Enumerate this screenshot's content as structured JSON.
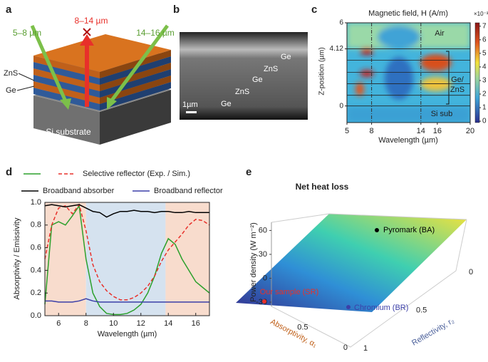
{
  "panel_labels": [
    "a",
    "b",
    "c",
    "d",
    "e"
  ],
  "schematic": {
    "left_band": "5–8 µm",
    "center_band": "8–14 µm",
    "right_band": "14–16 µm",
    "layer_top": "ZnS",
    "layer_bottom": "Ge",
    "substrate": "Si substrate"
  },
  "micrograph": {
    "layers": [
      "Ge",
      "ZnS",
      "Ge",
      "ZnS",
      "Ge"
    ],
    "scale": "1µm"
  },
  "chart_data": [
    {
      "type": "heatmap",
      "title": "Magnetic field, H (A/m)",
      "xlabel": "Wavelength (µm)",
      "ylabel": "Z-position (µm)",
      "xlim": [
        5,
        20
      ],
      "xticks": [
        5,
        8,
        14,
        16,
        20
      ],
      "ylim": [
        -1.2,
        6
      ],
      "yticks": [
        0,
        4.12,
        6
      ],
      "vlines": [
        8,
        14
      ],
      "layer_lines": [
        4.12,
        3.3,
        2.42,
        1.6,
        0.77,
        0
      ],
      "annotations": [
        "Air",
        "Ge/",
        "ZnS",
        "Si sub"
      ],
      "colorbar_label": "×10⁻³",
      "clim": [
        -0.1,
        7.25
      ],
      "cticks": [
        0,
        1,
        2,
        3,
        4,
        5,
        6,
        7
      ]
    },
    {
      "type": "line",
      "xlabel": "Wavelength (µm)",
      "ylabel": "Absorptivity / Emissivity",
      "xlim": [
        5,
        17
      ],
      "xticks": [
        6,
        8,
        10,
        12,
        14,
        16
      ],
      "ylim": [
        0,
        1.0
      ],
      "yticks": [
        {
          "value": 0,
          "label": "0.0"
        },
        {
          "value": 0.2,
          "label": "0.2"
        },
        {
          "value": 0.4,
          "label": "0.4"
        },
        {
          "value": 0.6,
          "label": "0.6"
        },
        {
          "value": 0.8,
          "label": "0.8"
        },
        {
          "value": 1,
          "label": "1.0"
        }
      ],
      "bands": [
        {
          "from": 5,
          "to": 8,
          "color": "#f8dccd"
        },
        {
          "from": 8,
          "to": 13.8,
          "color": "#d5e2ef"
        },
        {
          "from": 13.8,
          "to": 17,
          "color": "#f8dccd"
        }
      ],
      "x": [
        5,
        5.5,
        6,
        6.5,
        7,
        7.5,
        8,
        8.5,
        9,
        9.5,
        10,
        10.5,
        11,
        11.5,
        12,
        12.5,
        13,
        13.5,
        14,
        14.5,
        15,
        15.5,
        16,
        16.5,
        17
      ],
      "series": [
        {
          "name": "Selective reflector (Exp. / Sim.)",
          "color": "#2ca02c",
          "values": [
            0.1,
            0.8,
            0.83,
            0.8,
            0.88,
            0.97,
            0.5,
            0.2,
            0.08,
            0.02,
            0.01,
            0.01,
            0.02,
            0.05,
            0.1,
            0.2,
            0.35,
            0.55,
            0.68,
            0.63,
            0.5,
            0.4,
            0.3,
            0.25,
            0.2
          ]
        },
        {
          "color": "#e8302a",
          "dashed": true,
          "values": [
            0.5,
            0.8,
            0.95,
            0.97,
            0.9,
            0.98,
            0.75,
            0.45,
            0.3,
            0.22,
            0.17,
            0.14,
            0.14,
            0.16,
            0.2,
            0.26,
            0.35,
            0.48,
            0.58,
            0.65,
            0.72,
            0.8,
            0.85,
            0.84,
            0.8
          ]
        },
        {
          "name": "Broadband absorber",
          "color": "#000000",
          "values": [
            0.97,
            0.98,
            0.97,
            0.96,
            0.97,
            0.98,
            0.95,
            0.92,
            0.91,
            0.87,
            0.9,
            0.92,
            0.92,
            0.93,
            0.92,
            0.92,
            0.91,
            0.92,
            0.92,
            0.91,
            0.91,
            0.92,
            0.91,
            0.91,
            0.91
          ]
        },
        {
          "name": "Broadband reflector",
          "color": "#3b3fa8",
          "values": [
            0.13,
            0.13,
            0.12,
            0.12,
            0.12,
            0.13,
            0.15,
            0.13,
            0.12,
            0.12,
            0.12,
            0.12,
            0.12,
            0.12,
            0.12,
            0.12,
            0.12,
            0.12,
            0.12,
            0.12,
            0.12,
            0.12,
            0.12,
            0.12,
            0.12
          ]
        }
      ]
    },
    {
      "type": "surface",
      "title": "Net heat loss",
      "zlabel": "Power density (W m⁻²)",
      "xlabel": "Absorptivity, α₁",
      "ylabel": "Reflectivity, r₂",
      "zlim": [
        -30,
        72
      ],
      "zticks": [
        -30,
        0,
        30,
        60
      ],
      "xticks": [
        0,
        0.5
      ],
      "yticks": [
        0,
        0.5,
        1
      ],
      "points": [
        {
          "name": "Pyromark (BA)",
          "color": "#000000"
        },
        {
          "name": "Our sample (SR)",
          "color": "#e8302a"
        },
        {
          "name": "Chromium (BR)",
          "color": "#3b3fa8"
        }
      ]
    }
  ]
}
